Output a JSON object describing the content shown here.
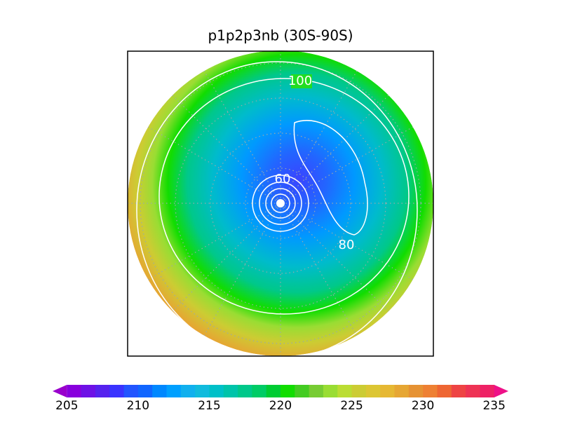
{
  "title": "p1p2p3nb (30S-90S)",
  "contour_labels": [
    "100",
    "60",
    "80"
  ],
  "colorbar": {
    "lim": [
      204,
      236
    ],
    "ticks": [
      205,
      210,
      215,
      220,
      225,
      230,
      235
    ],
    "colors": [
      "#9900cc",
      "#8800dd",
      "#6e11e6",
      "#5522ee",
      "#3a33ff",
      "#2255ff",
      "#1166ff",
      "#0088ff",
      "#00a0ff",
      "#11b0ee",
      "#11bbdd",
      "#00c0c8",
      "#00c4aa",
      "#00c88a",
      "#00cc66",
      "#00cc33",
      "#11dd00",
      "#44cc22",
      "#77cc33",
      "#99dd33",
      "#bbdd33",
      "#cccc33",
      "#dcc633",
      "#e6b833",
      "#e6a633",
      "#e69233",
      "#ee8033",
      "#ee6633",
      "#ee4444",
      "#ee3355",
      "#ee2266",
      "#ee1188"
    ]
  }
}
